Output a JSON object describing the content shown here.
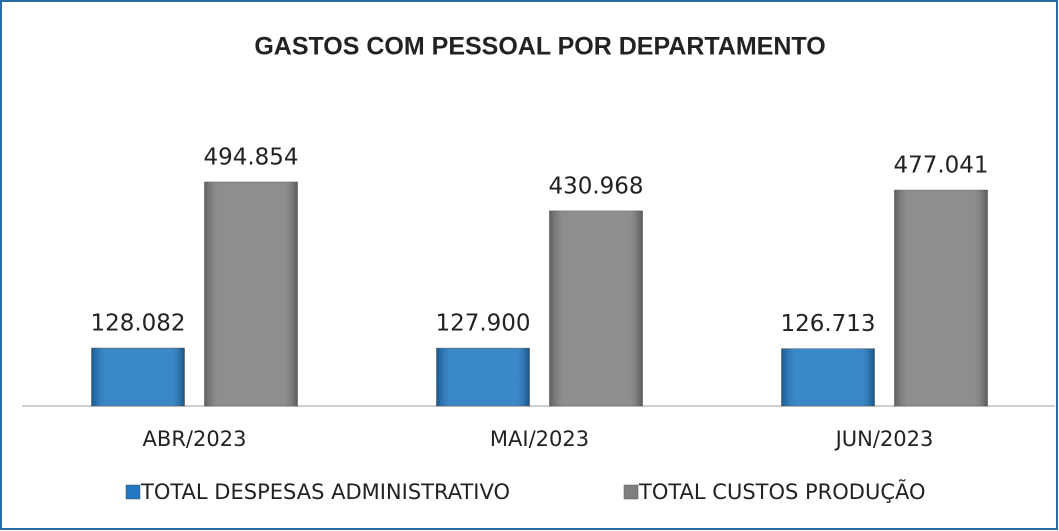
{
  "chart_data": {
    "type": "bar",
    "title": "GASTOS COM PESSOAL POR DEPARTAMENTO",
    "categories": [
      "ABR/2023",
      "MAI/2023",
      "JUN/2023"
    ],
    "series": [
      {
        "name": "TOTAL DESPESAS ADMINISTRATIVO",
        "color": "#1f78c1",
        "values": [
          128082,
          127900,
          126713
        ],
        "value_labels": [
          "128.082",
          "127.900",
          "126.713"
        ]
      },
      {
        "name": "TOTAL CUSTOS PRODUÇÃO",
        "color": "#7f7f7f",
        "values": [
          494854,
          430968,
          477041
        ],
        "value_labels": [
          "494.854",
          "430.968",
          "477.041"
        ]
      }
    ],
    "legend": "bottom"
  }
}
